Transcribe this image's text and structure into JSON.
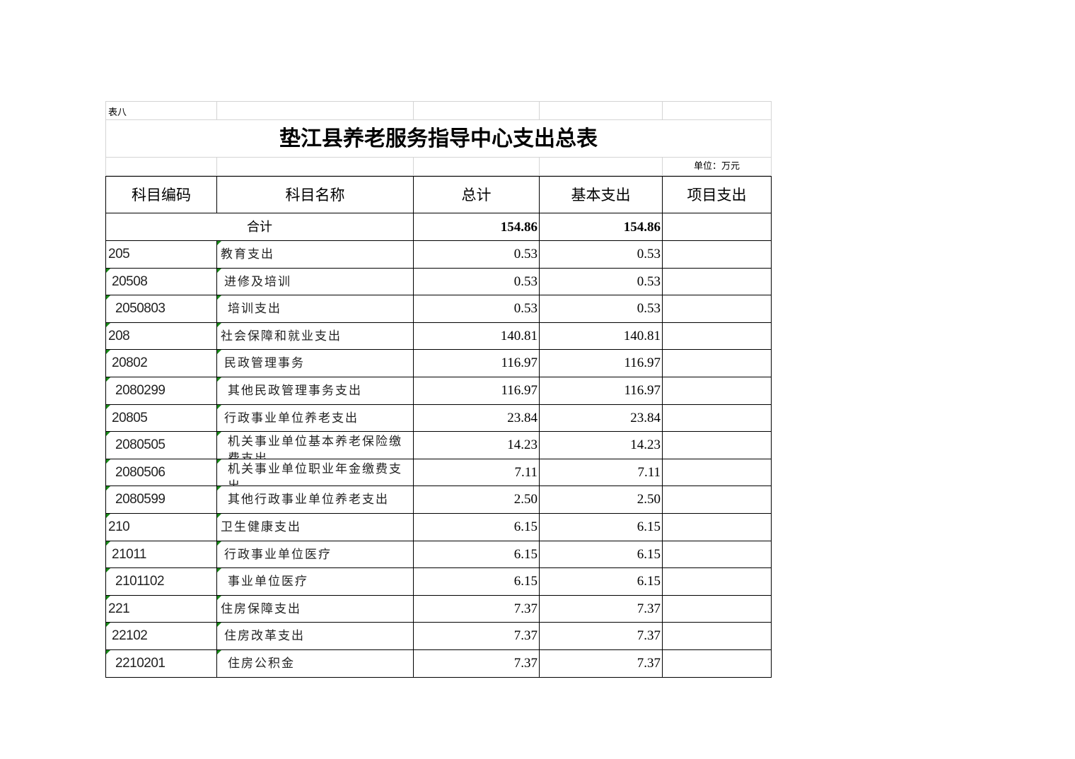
{
  "table_label": "表八",
  "title": "垫江县养老服务指导中心支出总表",
  "unit": "单位：万元",
  "headers": [
    "科目编码",
    "科目名称",
    "总计",
    "基本支出",
    "项目支出"
  ],
  "total": {
    "label": "合计",
    "total": "154.86",
    "basic": "154.86",
    "project": ""
  },
  "rows": [
    {
      "code": "205",
      "name": "教育支出",
      "total": "0.53",
      "basic": "0.53",
      "level": 0
    },
    {
      "code": "20508",
      "name": "进修及培训",
      "total": "0.53",
      "basic": "0.53",
      "level": 1
    },
    {
      "code": "2050803",
      "name": "培训支出",
      "total": "0.53",
      "basic": "0.53",
      "level": 2
    },
    {
      "code": "208",
      "name": "社会保障和就业支出",
      "total": "140.81",
      "basic": "140.81",
      "level": 0
    },
    {
      "code": "20802",
      "name": "民政管理事务",
      "total": "116.97",
      "basic": "116.97",
      "level": 1
    },
    {
      "code": "2080299",
      "name": "其他民政管理事务支出",
      "total": "116.97",
      "basic": "116.97",
      "level": 2
    },
    {
      "code": "20805",
      "name": "行政事业单位养老支出",
      "total": "23.84",
      "basic": "23.84",
      "level": 1
    },
    {
      "code": "2080505",
      "name": "机关事业单位基本养老保险缴费支出",
      "total": "14.23",
      "basic": "14.23",
      "level": 2
    },
    {
      "code": "2080506",
      "name": "机关事业单位职业年金缴费支出",
      "total": "7.11",
      "basic": "7.11",
      "level": 2
    },
    {
      "code": "2080599",
      "name": "其他行政事业单位养老支出",
      "total": "2.50",
      "basic": "2.50",
      "level": 2
    },
    {
      "code": "210",
      "name": "卫生健康支出",
      "total": "6.15",
      "basic": "6.15",
      "level": 0
    },
    {
      "code": "21011",
      "name": "行政事业单位医疗",
      "total": "6.15",
      "basic": "6.15",
      "level": 1
    },
    {
      "code": "2101102",
      "name": "事业单位医疗",
      "total": "6.15",
      "basic": "6.15",
      "level": 2
    },
    {
      "code": "221",
      "name": "住房保障支出",
      "total": "7.37",
      "basic": "7.37",
      "level": 0
    },
    {
      "code": "22102",
      "name": "住房改革支出",
      "total": "7.37",
      "basic": "7.37",
      "level": 1
    },
    {
      "code": "2210201",
      "name": "住房公积金",
      "total": "7.37",
      "basic": "7.37",
      "level": 2
    }
  ]
}
